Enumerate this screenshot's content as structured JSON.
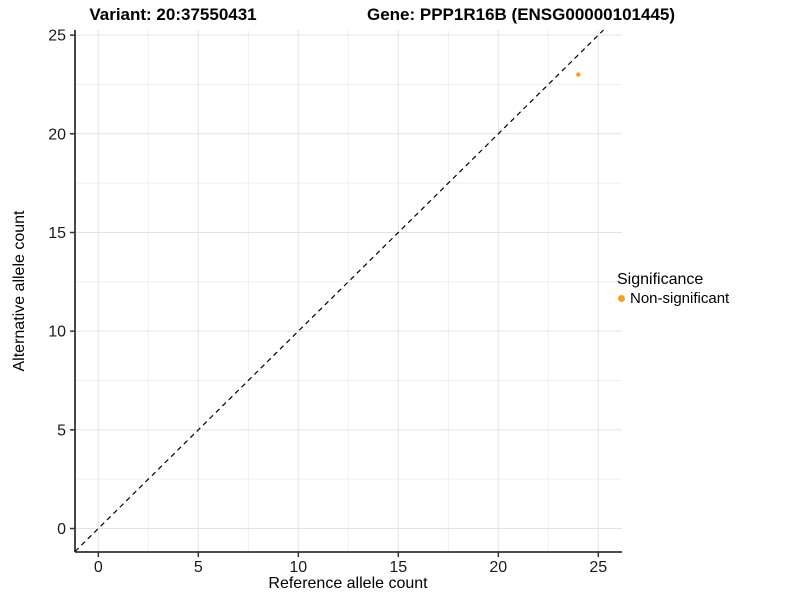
{
  "title_left": "Variant: 20:37550431",
  "title_right": "Gene: PPP1R16B (ENSG00000101445)",
  "chart_data": {
    "type": "scatter",
    "xlabel": "Reference allele count",
    "ylabel": "Alternative allele count",
    "xlim": [
      -1.165,
      26.185
    ],
    "ylim": [
      -1.19,
      25.26
    ],
    "x_ticks": [
      0,
      5,
      10,
      15,
      20,
      25
    ],
    "y_ticks": [
      0,
      5,
      10,
      15,
      20,
      25
    ],
    "x_minor": [
      2.5,
      7.5,
      12.5,
      17.5,
      22.5
    ],
    "y_minor": [
      2.5,
      7.5,
      12.5,
      17.5,
      22.5
    ],
    "grid": true,
    "identity_line": {
      "style": "dashed",
      "from": [
        -1.165,
        -1.165
      ],
      "to": [
        25.26,
        25.26
      ]
    },
    "points": [
      {
        "x": 24,
        "y": 23,
        "series": "Non-significant"
      }
    ],
    "legend": {
      "position": "right",
      "title": "Significance",
      "items": [
        {
          "label": "Non-significant",
          "color": "#F9A11B"
        }
      ]
    },
    "colors": {
      "point": "#F9A11B",
      "grid_major": "#E2E2E2",
      "grid_minor": "#EFEFEF",
      "axis": "#333333",
      "tick_text": "#1a1a1a",
      "dashed_line": "#000000"
    }
  }
}
